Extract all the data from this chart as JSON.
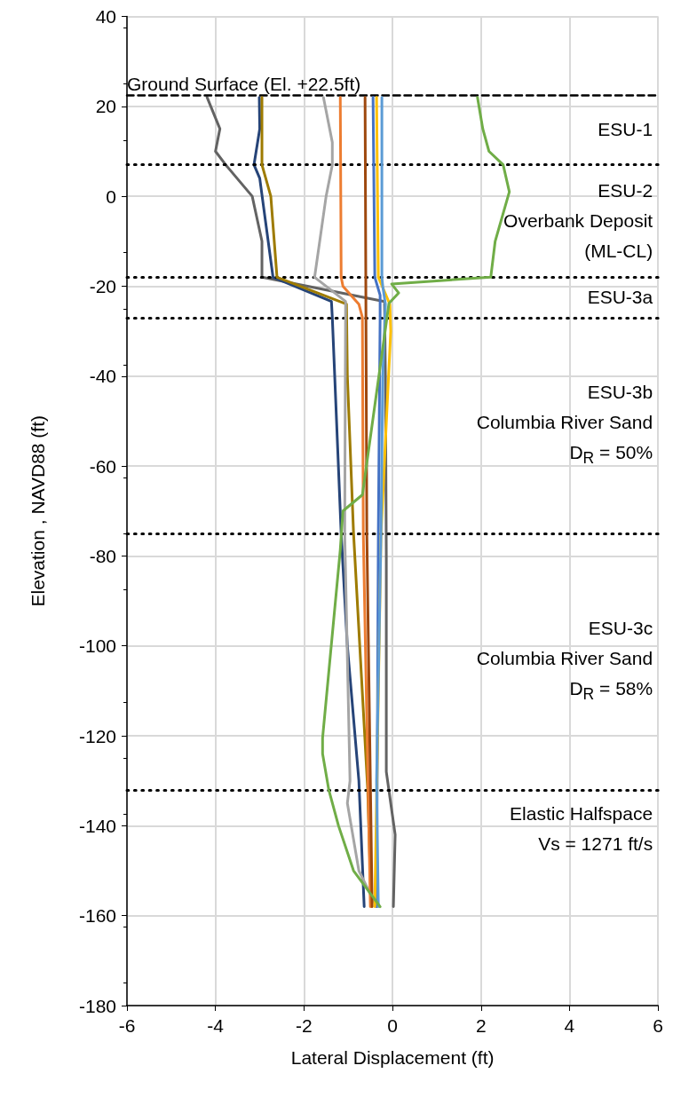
{
  "chart_data": {
    "type": "line",
    "xlabel": "Lateral Displacement (ft)",
    "ylabel": "Elevation , NAVD88 (ft)",
    "xlim": [
      -6,
      6
    ],
    "xticks": [
      -6,
      -4,
      -2,
      0,
      2,
      4,
      6
    ],
    "ylim": [
      -180,
      40
    ],
    "yticks": [
      -180,
      -160,
      -140,
      -120,
      -100,
      -80,
      -60,
      -40,
      -20,
      0,
      20,
      40
    ],
    "grid": true,
    "marker": "none",
    "line_style": "solid",
    "series": [
      {
        "color": "#636363",
        "x": [
          -4.19,
          -3.9,
          -4.0,
          -3.77,
          -3.17,
          -2.95,
          -2.95,
          -0.18,
          -0.16,
          -0.14,
          -0.14,
          0.06,
          0.02
        ],
        "values": [
          22,
          15,
          10,
          7,
          0,
          -10,
          -18,
          -23.4,
          -40,
          -80,
          -128,
          -142,
          -158
        ]
      },
      {
        "color": "#264478",
        "x": [
          -3.01,
          -3.0,
          -3.13,
          -3.0,
          -2.7,
          -1.38,
          -1.36,
          -1.16,
          -1.02,
          -0.76,
          -0.64
        ],
        "values": [
          22,
          15,
          7,
          4,
          -18,
          -23.4,
          -27,
          -75,
          -100,
          -130,
          -158
        ]
      },
      {
        "color": "#9e7b00",
        "x": [
          -2.95,
          -2.95,
          -2.75,
          -2.61,
          -1.04,
          -1.02,
          -0.88,
          -0.56,
          -0.48
        ],
        "values": [
          22,
          7,
          0,
          -18,
          -24,
          -40,
          -75,
          -132,
          -158
        ]
      },
      {
        "color": "#a5a5a5",
        "x": [
          -1.56,
          -1.36,
          -1.36,
          -1.5,
          -1.76,
          -1.06,
          -1.08,
          -0.96,
          -1.02,
          -0.76,
          -0.36
        ],
        "values": [
          22,
          12,
          7,
          0,
          -18,
          -23.4,
          -75,
          -130,
          -135,
          -150,
          -158
        ]
      },
      {
        "color": "#ed7d31",
        "x": [
          -1.18,
          -1.16,
          -1.12,
          -0.76,
          -0.68,
          -0.66,
          -0.5
        ],
        "values": [
          22,
          -18,
          -20,
          -24,
          -27,
          -75,
          -158
        ]
      },
      {
        "color": "#9e480e",
        "x": [
          -0.62,
          -0.58,
          -0.46
        ],
        "values": [
          22,
          -75,
          -158
        ]
      },
      {
        "color": "#4472c4",
        "x": [
          -0.44,
          -0.4,
          -0.28,
          -0.28,
          -0.32,
          -0.36
        ],
        "values": [
          22,
          -18,
          -22,
          -27,
          -75,
          -158
        ]
      },
      {
        "color": "#ffc000",
        "x": [
          -0.36,
          -0.32,
          -0.06,
          -0.04,
          -0.26,
          -0.4
        ],
        "values": [
          22,
          -18,
          -24,
          -30,
          -75,
          -158
        ]
      },
      {
        "color": "#5b9bd5",
        "x": [
          -0.24,
          -0.24,
          -0.22,
          -0.16,
          -0.22,
          -0.26,
          -0.36,
          -0.32
        ],
        "values": [
          22,
          -18,
          -20,
          -24,
          -40,
          -75,
          -130,
          -158
        ]
      },
      {
        "color": "#70ad47",
        "x": [
          1.92,
          2.04,
          2.18,
          2.5,
          2.64,
          2.32,
          2.22,
          -0.02,
          0.14,
          -0.08,
          -0.68,
          -1.12,
          -1.18,
          -1.58,
          -1.58,
          -1.44,
          -1.22,
          -0.88,
          -0.28
        ],
        "values": [
          22,
          15,
          10,
          7,
          1,
          -10,
          -18,
          -19.5,
          -21.5,
          -23.8,
          -66.4,
          -70,
          -78.6,
          -120.5,
          -124,
          -132,
          -140,
          -150,
          -158
        ]
      }
    ],
    "ref_lines": [
      {
        "axis": "y",
        "value": 22.5,
        "label": "Ground Surface (El. +22.5ft)",
        "line_style": "dashed",
        "color": "#000000"
      },
      {
        "axis": "y",
        "value": 7,
        "line_style": "dotted",
        "color": "#000000"
      },
      {
        "axis": "y",
        "value": -18,
        "line_style": "dotted",
        "color": "#000000"
      },
      {
        "axis": "y",
        "value": -27,
        "line_style": "dotted",
        "color": "#000000"
      },
      {
        "axis": "y",
        "value": -75,
        "line_style": "dotted",
        "color": "#000000"
      },
      {
        "axis": "y",
        "value": -132,
        "line_style": "dotted",
        "color": "#000000"
      }
    ],
    "annotations": [
      "ESU-1",
      "ESU-2\nOverbank Deposit\n(ML-CL)",
      "ESU-3a",
      "ESU-3b\nColumbia River Sand\nD$_{R}$ = 50%",
      "ESU-3c\nColumbia River Sand\nD$_{R}$ = 58%",
      "Elastic Halfspace\nVs = 1271 ft/s"
    ]
  }
}
